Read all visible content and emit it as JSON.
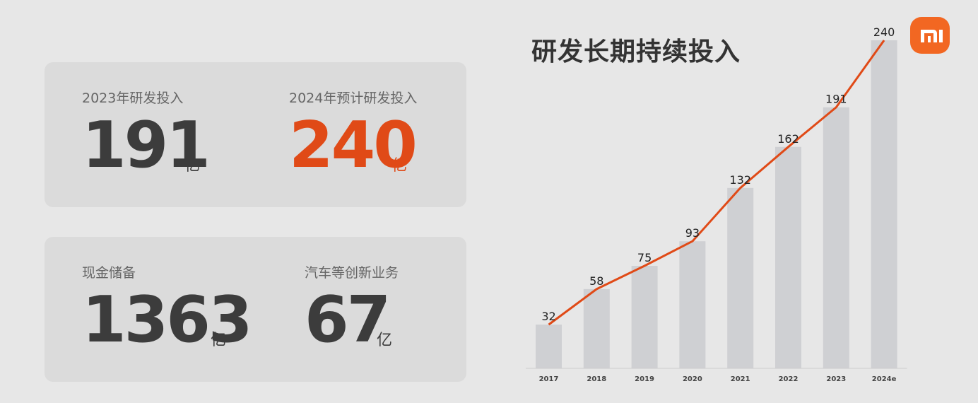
{
  "metrics": {
    "rd_2023": {
      "label": "2023年研发投入",
      "value": "191",
      "unit": "亿"
    },
    "rd_2024": {
      "label": "2024年预计研发投入",
      "value": "240",
      "unit": "亿"
    },
    "cash": {
      "label": "现金储备",
      "value": "1363",
      "unit": "亿"
    },
    "new_business": {
      "label": "汽车等创新业务",
      "value": "67",
      "unit": "亿"
    }
  },
  "colors": {
    "accent": "#e04a17",
    "bar": "#cfd0d3",
    "logo": "#f26722",
    "card": "#dbdbdb"
  },
  "logo": {
    "icon": "mi-logo-icon"
  },
  "chart_data": {
    "type": "bar",
    "title": "研发长期持续投入",
    "categories": [
      "2017",
      "2018",
      "2019",
      "2020",
      "2021",
      "2022",
      "2023",
      "2024e"
    ],
    "values": [
      32,
      58,
      75,
      93,
      132,
      162,
      191,
      240
    ],
    "data_labels": [
      "32",
      "58",
      "75",
      "93",
      "132",
      "162",
      "191",
      "240"
    ],
    "overlay": {
      "type": "line",
      "values": [
        32,
        58,
        75,
        93,
        132,
        162,
        191,
        240
      ],
      "color": "#e04a17"
    },
    "ylim": [
      0,
      240
    ],
    "grid": false,
    "legend": "none"
  }
}
